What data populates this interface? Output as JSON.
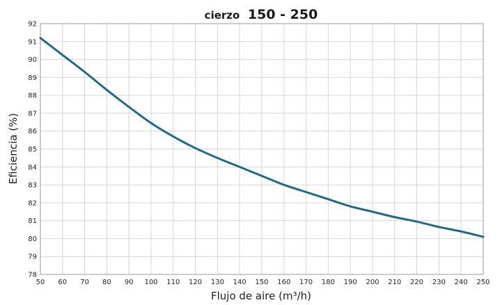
{
  "chart_data": {
    "type": "line",
    "title_brand": "cierzo",
    "title_model": "150 - 250",
    "xlabel": "Flujo de aire (m³/h)",
    "ylabel": "Eficiencia (%)",
    "xlim": [
      50,
      250
    ],
    "ylim": [
      78,
      92
    ],
    "xticks": [
      50,
      60,
      70,
      80,
      90,
      100,
      110,
      120,
      130,
      140,
      150,
      160,
      170,
      180,
      190,
      200,
      210,
      220,
      230,
      240,
      250
    ],
    "yticks": [
      78,
      79,
      80,
      81,
      82,
      83,
      84,
      85,
      86,
      87,
      88,
      89,
      90,
      91,
      92
    ],
    "grid": true,
    "line_color": "#1d6a8e",
    "series": [
      {
        "x": [
          50,
          60,
          70,
          80,
          90,
          100,
          110,
          120,
          130,
          140,
          150,
          160,
          170,
          180,
          190,
          200,
          210,
          220,
          230,
          240,
          250
        ],
        "values": [
          91.2,
          90.25,
          89.3,
          88.3,
          87.35,
          86.45,
          85.7,
          85.05,
          84.5,
          84.0,
          83.5,
          83.0,
          82.6,
          82.2,
          81.8,
          81.5,
          81.2,
          80.95,
          80.65,
          80.4,
          80.1
        ]
      }
    ]
  }
}
